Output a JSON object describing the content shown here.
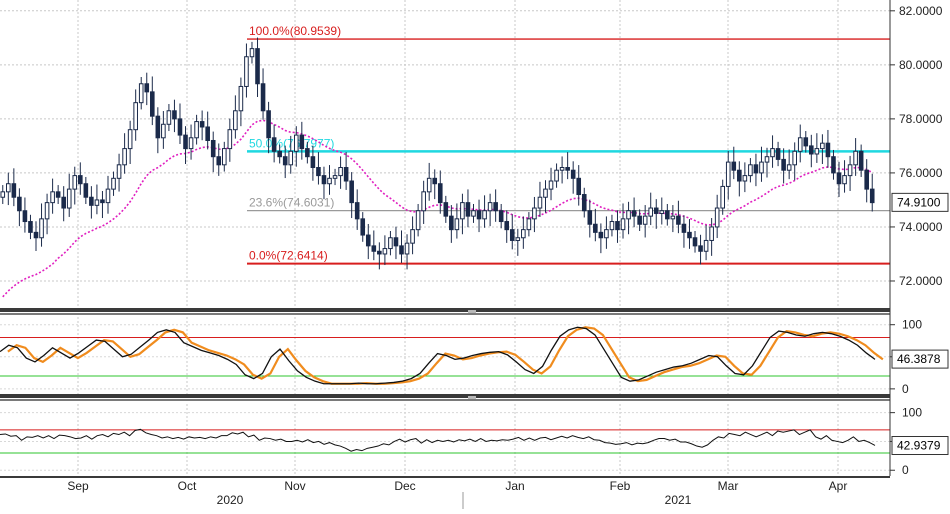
{
  "chart_data": [
    {
      "type": "candlestick",
      "role": "price",
      "ylim": [
        71.0,
        82.4
      ],
      "yticks": [
        "82.0000",
        "80.0000",
        "78.0000",
        "76.0000",
        "74.0000",
        "72.0000"
      ],
      "ytick_values": [
        82,
        80,
        78,
        76,
        74,
        72
      ],
      "last_label": "74.9100",
      "last_value": 74.91,
      "fib_levels": [
        {
          "label": "100.0%(80.9539)",
          "value": 80.9539,
          "color": "#d81e1e"
        },
        {
          "label": "50.0%(76.7977)",
          "value": 76.7977,
          "color": "#1fd8e0"
        },
        {
          "label": "23.6%(74.6031)",
          "value": 74.6031,
          "color": "#9a9a9a"
        },
        {
          "label": "0.0%(72.6414)",
          "value": 72.6414,
          "color": "#d81e1e"
        }
      ],
      "ma_color": "#e020c0",
      "candle_color": "#1b2a4a",
      "series_close": [
        75.3,
        75.6,
        75.1,
        74.6,
        74.2,
        73.8,
        73.6,
        74.3,
        74.9,
        75.3,
        75.1,
        74.7,
        75.4,
        75.9,
        75.6,
        75.1,
        74.8,
        75.0,
        74.9,
        75.4,
        75.8,
        76.3,
        76.9,
        77.6,
        78.6,
        79.3,
        79.0,
        78.1,
        77.3,
        77.8,
        78.3,
        78.0,
        77.4,
        76.9,
        77.3,
        77.9,
        77.7,
        77.2,
        76.6,
        76.3,
        76.9,
        77.6,
        78.3,
        79.2,
        80.3,
        80.6,
        79.3,
        78.3,
        77.3,
        76.8,
        76.6,
        76.3,
        76.8,
        77.4,
        76.9,
        76.6,
        76.2,
        75.9,
        75.6,
        75.8,
        75.9,
        76.2,
        75.7,
        74.9,
        74.3,
        73.7,
        73.3,
        73.1,
        73.0,
        73.2,
        73.6,
        73.3,
        73.0,
        73.4,
        73.9,
        74.6,
        75.3,
        75.8,
        75.6,
        74.9,
        74.4,
        73.9,
        74.3,
        74.9,
        74.4,
        74.6,
        74.3,
        74.6,
        74.9,
        74.6,
        74.2,
        73.9,
        73.5,
        73.6,
        73.9,
        74.3,
        74.7,
        75.1,
        75.4,
        75.7,
        76.1,
        76.2,
        76.1,
        75.8,
        75.2,
        74.6,
        74.1,
        73.8,
        73.6,
        73.9,
        74.2,
        73.9,
        74.3,
        74.6,
        74.4,
        74.1,
        74.4,
        74.7,
        74.5,
        74.6,
        74.3,
        74.4,
        74.1,
        73.8,
        73.6,
        73.3,
        73.1,
        73.5,
        74.0,
        74.7,
        75.5,
        76.4,
        76.1,
        75.7,
        75.9,
        76.3,
        76.0,
        76.4,
        76.6,
        76.9,
        76.5,
        76.1,
        76.3,
        76.8,
        77.3,
        77.0,
        76.7,
        76.9,
        77.1,
        76.6,
        76.0,
        75.6,
        75.9,
        76.3,
        76.8,
        76.1,
        75.4,
        74.9
      ]
    },
    {
      "type": "line",
      "role": "oscillator-1",
      "ylim": [
        -8,
        112
      ],
      "yticks": [
        "100",
        "50",
        "0"
      ],
      "ytick_values": [
        100,
        50,
        0
      ],
      "bands": [
        {
          "value": 80,
          "color": "#d81e1e"
        },
        {
          "value": 20,
          "color": "#2ec42e"
        }
      ],
      "last_label": "46.3878",
      "last_value": 46.3878,
      "colors": {
        "main": "#111111",
        "signal": "#f08c1e"
      },
      "series": [
        58,
        68,
        64,
        48,
        42,
        52,
        64,
        56,
        48,
        56,
        66,
        76,
        74,
        62,
        50,
        54,
        65,
        76,
        88,
        92,
        88,
        72,
        66,
        60,
        56,
        52,
        46,
        38,
        22,
        16,
        24,
        50,
        62,
        44,
        28,
        18,
        12,
        8,
        8,
        8,
        8,
        9,
        8,
        8,
        9,
        10,
        12,
        16,
        24,
        40,
        55,
        52,
        46,
        48,
        52,
        55,
        57,
        58,
        53,
        42,
        30,
        24,
        35,
        60,
        82,
        92,
        96,
        94,
        84,
        62,
        40,
        18,
        12,
        14,
        20,
        26,
        30,
        34,
        36,
        40,
        46,
        52,
        50,
        36,
        24,
        22,
        36,
        58,
        80,
        90,
        88,
        84,
        82,
        86,
        88,
        86,
        82,
        76,
        68,
        56,
        46
      ]
    },
    {
      "type": "line",
      "role": "oscillator-2",
      "ylim": [
        -10,
        115
      ],
      "yticks": [
        "100",
        "50",
        "0"
      ],
      "ytick_values": [
        100,
        50,
        0
      ],
      "bands": [
        {
          "value": 70,
          "color": "#d81e1e"
        },
        {
          "value": 30,
          "color": "#2ec42e"
        }
      ],
      "last_label": "42.9379",
      "last_value": 42.9379,
      "colors": {
        "main": "#111111"
      },
      "series": [
        62,
        63,
        59,
        60,
        52,
        58,
        57,
        60,
        56,
        60,
        55,
        61,
        60,
        58,
        55,
        56,
        60,
        54,
        60,
        62,
        58,
        64,
        62,
        66,
        60,
        69,
        71,
        65,
        62,
        60,
        56,
        58,
        55,
        57,
        54,
        58,
        56,
        57,
        55,
        58,
        56,
        60,
        60,
        65,
        63,
        66,
        58,
        61,
        52,
        56,
        55,
        52,
        54,
        50,
        50,
        52,
        49,
        53,
        48,
        50,
        45,
        48,
        44,
        42,
        38,
        33,
        36,
        34,
        38,
        40,
        42,
        46,
        44,
        50,
        54,
        49,
        53,
        55,
        47,
        53,
        48,
        52,
        50,
        52,
        49,
        53,
        51,
        54,
        50,
        55,
        50,
        52,
        51,
        53,
        52,
        54,
        57,
        52,
        56,
        52,
        56,
        57,
        53,
        56,
        59,
        56,
        60,
        57,
        55,
        58,
        53,
        52,
        48,
        47,
        45,
        46,
        48,
        44,
        47,
        46,
        48,
        52,
        55,
        55,
        52,
        54,
        49,
        49,
        46,
        42,
        40,
        44,
        52,
        58,
        56,
        64,
        62,
        60,
        66,
        62,
        58,
        62,
        66,
        60,
        68,
        66,
        68,
        70,
        62,
        66,
        70,
        58,
        54,
        60,
        52,
        50,
        48,
        52,
        58,
        50,
        52,
        48,
        43
      ]
    }
  ],
  "x_axis": {
    "months": [
      "Sep",
      "Oct",
      "Nov",
      "Dec",
      "Jan",
      "Feb",
      "Mar",
      "Apr"
    ],
    "years": [
      "2020",
      "2021"
    ]
  }
}
